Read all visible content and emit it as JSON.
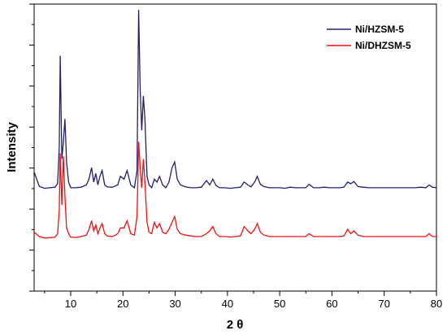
{
  "chart_data": {
    "type": "line",
    "title": "",
    "xlabel": "2 θ",
    "ylabel": "Intensity",
    "xlim": [
      3,
      80
    ],
    "ylim": [
      0,
      1
    ],
    "xticks": [
      10,
      20,
      30,
      40,
      50,
      60,
      70,
      80
    ],
    "y_tick_labels_shown": false,
    "grid": false,
    "legend_position": "top-right",
    "x": [
      3,
      4,
      5,
      6,
      7,
      7.5,
      7.8,
      8.0,
      8.3,
      8.6,
      8.9,
      9.2,
      9.6,
      10,
      11,
      12,
      13,
      13.5,
      14.0,
      14.4,
      14.8,
      15.2,
      15.6,
      16.0,
      16.5,
      17,
      18,
      19,
      19.5,
      20.2,
      20.8,
      21.5,
      22.2,
      22.7,
      23.0,
      23.3,
      23.6,
      23.9,
      24.2,
      24.6,
      25.0,
      25.5,
      26.0,
      26.5,
      27.0,
      27.6,
      28.2,
      28.8,
      29.4,
      29.9,
      30.4,
      31,
      32,
      33,
      34,
      35,
      36,
      36.6,
      37.2,
      37.8,
      38.5,
      39.5,
      40.5,
      41.5,
      42.5,
      43.2,
      43.9,
      44.5,
      45.2,
      45.7,
      46.3,
      47,
      48,
      49,
      50,
      51,
      52,
      53,
      54,
      55,
      55.6,
      56.5,
      57.5,
      58.5,
      59.5,
      60.5,
      61.5,
      62.3,
      63.0,
      63.6,
      64.2,
      65,
      66,
      67,
      68,
      69,
      70,
      71,
      72,
      73,
      74,
      75,
      76,
      77,
      78,
      78.6,
      79.2,
      80
    ],
    "series": [
      {
        "name": "Ni/HZSM-5",
        "color": "#1f1f6e",
        "values": [
          0.415,
          0.365,
          0.358,
          0.36,
          0.362,
          0.375,
          0.5,
          0.82,
          0.46,
          0.52,
          0.6,
          0.45,
          0.38,
          0.36,
          0.36,
          0.362,
          0.37,
          0.39,
          0.43,
          0.38,
          0.41,
          0.37,
          0.4,
          0.42,
          0.37,
          0.363,
          0.362,
          0.37,
          0.4,
          0.39,
          0.42,
          0.37,
          0.36,
          0.42,
          0.98,
          0.7,
          0.56,
          0.68,
          0.6,
          0.4,
          0.37,
          0.36,
          0.39,
          0.38,
          0.4,
          0.37,
          0.36,
          0.38,
          0.43,
          0.45,
          0.39,
          0.37,
          0.363,
          0.36,
          0.36,
          0.362,
          0.385,
          0.37,
          0.39,
          0.368,
          0.36,
          0.36,
          0.358,
          0.36,
          0.362,
          0.38,
          0.37,
          0.363,
          0.38,
          0.4,
          0.372,
          0.364,
          0.36,
          0.36,
          0.36,
          0.358,
          0.362,
          0.36,
          0.36,
          0.36,
          0.372,
          0.36,
          0.36,
          0.362,
          0.36,
          0.36,
          0.36,
          0.362,
          0.38,
          0.374,
          0.382,
          0.364,
          0.362,
          0.36,
          0.36,
          0.36,
          0.36,
          0.36,
          0.36,
          0.36,
          0.36,
          0.36,
          0.36,
          0.362,
          0.36,
          0.37,
          0.362,
          0.36
        ]
      },
      {
        "name": "Ni/DHZSM-5",
        "color": "#ee1111",
        "values": [
          0.205,
          0.19,
          0.185,
          0.186,
          0.188,
          0.2,
          0.28,
          0.48,
          0.3,
          0.47,
          0.33,
          0.22,
          0.2,
          0.188,
          0.187,
          0.19,
          0.195,
          0.215,
          0.245,
          0.21,
          0.23,
          0.2,
          0.22,
          0.235,
          0.2,
          0.192,
          0.19,
          0.2,
          0.22,
          0.22,
          0.245,
          0.2,
          0.195,
          0.26,
          0.52,
          0.43,
          0.36,
          0.46,
          0.38,
          0.24,
          0.205,
          0.2,
          0.24,
          0.22,
          0.235,
          0.205,
          0.2,
          0.215,
          0.24,
          0.26,
          0.215,
          0.2,
          0.195,
          0.192,
          0.19,
          0.19,
          0.2,
          0.21,
          0.225,
          0.2,
          0.19,
          0.19,
          0.188,
          0.19,
          0.192,
          0.225,
          0.21,
          0.2,
          0.215,
          0.235,
          0.205,
          0.195,
          0.19,
          0.19,
          0.19,
          0.19,
          0.19,
          0.19,
          0.19,
          0.19,
          0.2,
          0.19,
          0.19,
          0.19,
          0.19,
          0.19,
          0.19,
          0.192,
          0.215,
          0.2,
          0.21,
          0.195,
          0.19,
          0.19,
          0.19,
          0.19,
          0.19,
          0.19,
          0.19,
          0.19,
          0.19,
          0.19,
          0.19,
          0.19,
          0.19,
          0.2,
          0.19,
          0.19
        ]
      }
    ]
  }
}
